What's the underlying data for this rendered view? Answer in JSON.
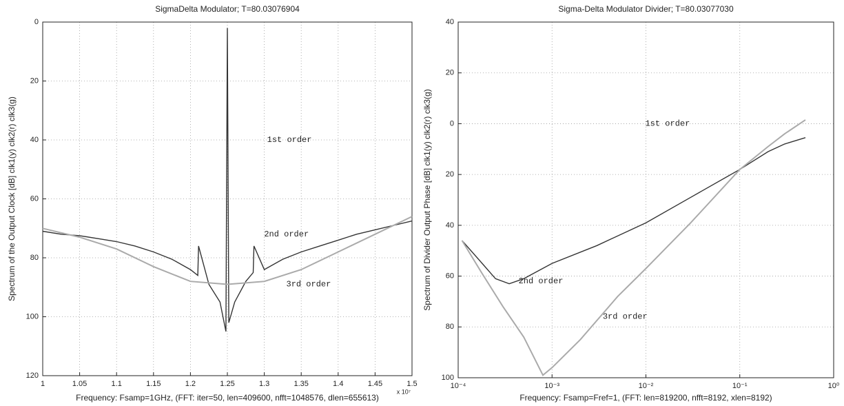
{
  "chart_data": [
    {
      "type": "line",
      "title": "SigmaDelta Modulator; T=80.03076904",
      "y_label": "Spectrum of the Output Clock [dB] clk1(y) clk2(r) clk3(g)",
      "x_label": "Frequency: Fsamp=1GHz, (FFT: iter=50, len=409600, nfft=1048576, dlen=655613)",
      "x_multiplier": "x 10⁷",
      "xlim": [
        1,
        1.5
      ],
      "xticks": [
        1,
        1.05,
        1.1,
        1.15,
        1.2,
        1.25,
        1.3,
        1.35,
        1.4,
        1.45,
        1.5
      ],
      "ylim": [
        -120,
        0
      ],
      "yticks": [
        0,
        {
          "value": -20,
          "label": "20"
        },
        {
          "value": -40,
          "label": "40"
        },
        {
          "value": -60,
          "label": "60"
        },
        {
          "value": -80,
          "label": "80"
        },
        {
          "value": -100,
          "label": "100"
        },
        {
          "value": -120,
          "label": "120"
        }
      ],
      "grid": true,
      "series": [
        {
          "color": "#333333",
          "x": [
            1.0,
            1.025,
            1.05,
            1.075,
            1.1,
            1.125,
            1.15,
            1.175,
            1.2,
            1.21,
            1.211,
            1.225,
            1.24,
            1.248,
            1.25,
            1.252,
            1.26,
            1.275,
            1.285,
            1.286,
            1.3,
            1.325,
            1.35,
            1.375,
            1.4,
            1.425,
            1.45,
            1.475,
            1.5
          ],
          "values": [
            -71,
            -72,
            -72.5,
            -73.5,
            -74.5,
            -76,
            -78,
            -80.5,
            -84,
            -86,
            -76,
            -89,
            -95,
            -105,
            -2,
            -102,
            -95,
            -88,
            -85,
            -76,
            -84,
            -80.5,
            -78,
            -76,
            -74,
            -72,
            -70.5,
            -69,
            -67.5
          ]
        },
        {
          "color": "#aaaaaa",
          "x": [
            1.0,
            1.05,
            1.1,
            1.15,
            1.2,
            1.25,
            1.3,
            1.35,
            1.4,
            1.45,
            1.5
          ],
          "values": [
            -70,
            -73,
            -77,
            -83,
            -88,
            -89,
            -88,
            -84,
            -78,
            -72,
            -66
          ]
        }
      ],
      "annotations": [
        {
          "text": "1st order",
          "x": 1.334,
          "y": -40
        },
        {
          "text": "2nd order",
          "x": 1.33,
          "y": -72
        },
        {
          "text": "3rd order",
          "x": 1.36,
          "y": -89
        }
      ]
    },
    {
      "type": "line",
      "title": "Sigma-Delta Modulator Divider; T=80.03077030",
      "y_label": "Spectrum of Divider Output Phase [dB] clk1(y) clk2(r) clk3(g)",
      "x_label": "Frequency: Fsamp=Fref=1, (FFT: len=819200, nfft=8192, xlen=8192)",
      "x_log": true,
      "xlim": [
        0.0001,
        1
      ],
      "xticks": [
        {
          "value": 0.0001,
          "label": "10⁻⁴"
        },
        {
          "value": 0.001,
          "label": "10⁻³"
        },
        {
          "value": 0.01,
          "label": "10⁻²"
        },
        {
          "value": 0.1,
          "label": "10⁻¹"
        },
        {
          "value": 1,
          "label": "10⁰"
        }
      ],
      "ylim": [
        -100,
        40
      ],
      "yticks": [
        40,
        20,
        0,
        {
          "value": -20,
          "label": "20"
        },
        {
          "value": -40,
          "label": "40"
        },
        {
          "value": -60,
          "label": "60"
        },
        {
          "value": -80,
          "label": "80"
        },
        {
          "value": -100,
          "label": "100"
        }
      ],
      "grid": true,
      "series": [
        {
          "color": "#333333",
          "x": [
            0.00011,
            0.00018,
            0.00025,
            0.00035,
            0.0005,
            0.001,
            0.003,
            0.01,
            0.03,
            0.1,
            0.2,
            0.3,
            0.5
          ],
          "values": [
            -46,
            -55,
            -61,
            -63,
            -61,
            -55,
            -48,
            -39,
            -29,
            -18,
            -11,
            -8,
            -5.5
          ]
        },
        {
          "color": "#aaaaaa",
          "x": [
            0.00011,
            0.00018,
            0.0003,
            0.0005,
            0.0008,
            0.001,
            0.002,
            0.005,
            0.01,
            0.03,
            0.1,
            0.2,
            0.3,
            0.5
          ],
          "values": [
            -46,
            -59,
            -72,
            -84,
            -99,
            -96,
            -85,
            -68,
            -57,
            -39,
            -18,
            -9,
            -4,
            1.5
          ]
        }
      ],
      "annotations": [
        {
          "text": "1st order",
          "x": 0.017,
          "y": 0
        },
        {
          "text": "2nd order",
          "x": 0.00076,
          "y": -62
        },
        {
          "text": "3rd order",
          "x": 0.006,
          "y": -76
        }
      ]
    }
  ]
}
